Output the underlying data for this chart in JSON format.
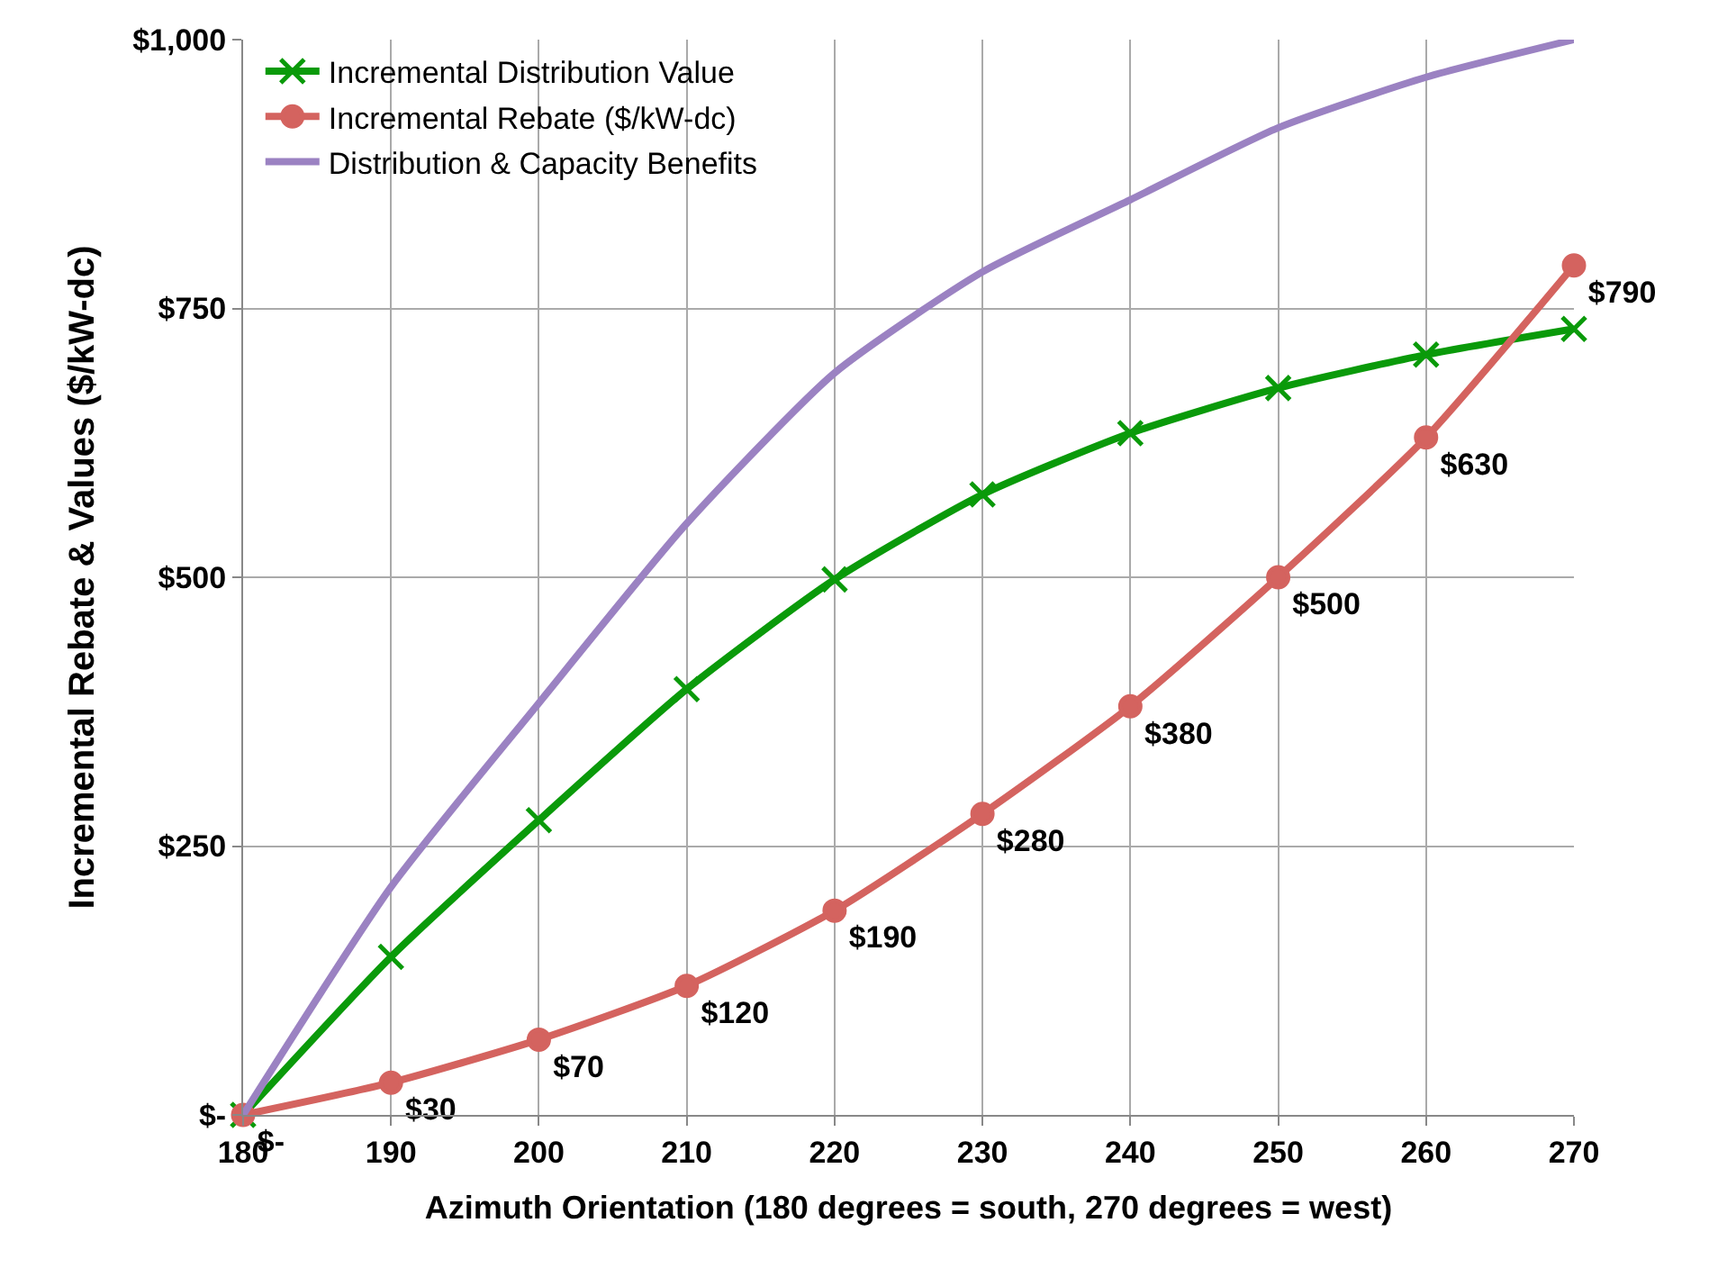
{
  "chart_data": {
    "type": "line",
    "xlabel": "Azimuth Orientation (180 degrees = south, 270 degrees = west)",
    "ylabel": "Incremental Rebate & Values ($/kW-dc)",
    "x": [
      180,
      190,
      200,
      210,
      220,
      230,
      240,
      250,
      260,
      270
    ],
    "series": [
      {
        "name": "Incremental Distribution Value",
        "color": "#0a9a0a",
        "marker": "cross",
        "values": [
          0,
          147,
          274,
          396,
          498,
          577,
          634,
          676,
          707,
          731
        ]
      },
      {
        "name": "Incremental Rebate ($/kW-dc)",
        "color": "#d4635f",
        "marker": "circle",
        "values": [
          0,
          30,
          70,
          120,
          190,
          280,
          380,
          500,
          630,
          790
        ],
        "value_labels": [
          "$-",
          "$30",
          "$70",
          "$120",
          "$190",
          "$280",
          "$380",
          "$500",
          "$630",
          "$790"
        ]
      },
      {
        "name": "Distribution & Capacity Benefits",
        "color": "#9b82c2",
        "marker": "none",
        "values": [
          0,
          212,
          383,
          550,
          690,
          784,
          851,
          918,
          965,
          1000
        ]
      }
    ],
    "xlim": [
      180,
      270
    ],
    "xticks": [
      180,
      190,
      200,
      210,
      220,
      230,
      240,
      250,
      260,
      270
    ],
    "ylim": [
      0,
      1000
    ],
    "yticks": [
      {
        "value": 0,
        "label": "$-"
      },
      {
        "value": 250,
        "label": "$250"
      },
      {
        "value": 500,
        "label": "$500"
      },
      {
        "value": 750,
        "label": "$750"
      },
      {
        "value": 1000,
        "label": "$1,000"
      }
    ],
    "grid": true,
    "legend": "top left",
    "line_style": "solid"
  }
}
